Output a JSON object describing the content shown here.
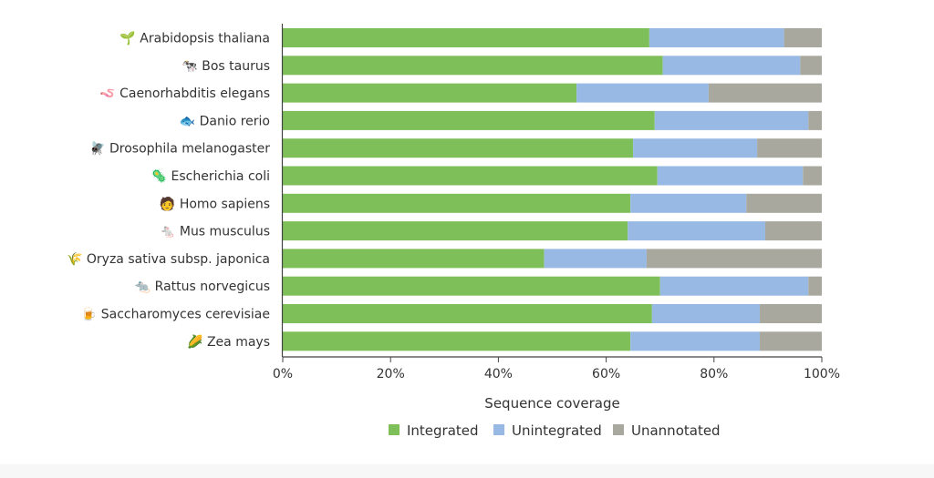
{
  "chart_data": {
    "type": "bar",
    "orientation": "horizontal",
    "stacked": true,
    "categories": [
      "Arabidopsis thaliana",
      "Bos taurus",
      "Caenorhabditis elegans",
      "Danio rerio",
      "Drosophila melanogaster",
      "Escherichia coli",
      "Homo sapiens",
      "Mus musculus",
      "Oryza sativa subsp. japonica",
      "Rattus norvegicus",
      "Saccharomyces cerevisiae",
      "Zea mays"
    ],
    "category_icons": [
      "seedling-icon",
      "cow-icon",
      "worm-icon",
      "fish-icon",
      "fly-icon",
      "microbe-icon",
      "person-icon",
      "mouse-icon",
      "rice-icon",
      "rat-icon",
      "beer-icon",
      "corn-icon"
    ],
    "category_glyphs": [
      "🌱",
      "🐄",
      "🪱",
      "🐟",
      "🪰",
      "🦠",
      "🧑",
      "🐁",
      "🌾",
      "🐀",
      "🍺",
      "🌽"
    ],
    "series": [
      {
        "name": "Integrated",
        "color": "#7fbf5a",
        "values": [
          68,
          70.5,
          54.5,
          69,
          65,
          69.5,
          64.5,
          64,
          48.5,
          70,
          68.5,
          64.5
        ]
      },
      {
        "name": "Unintegrated",
        "color": "#97b9e4",
        "values": [
          25,
          25.5,
          24.5,
          28.5,
          23,
          27,
          21.5,
          25.5,
          19,
          27.5,
          20,
          24
        ]
      },
      {
        "name": "Unannotated",
        "color": "#a8a89e",
        "values": [
          7,
          4,
          21,
          2.5,
          12,
          3.5,
          14,
          10.5,
          32.5,
          2.5,
          11.5,
          11.5
        ]
      }
    ],
    "xlim": [
      0,
      100
    ],
    "xticks": [
      "0%",
      "20%",
      "40%",
      "60%",
      "80%",
      "100%"
    ],
    "xlabel": "Sequence coverage",
    "ylabel": "",
    "grid": false,
    "legend_position": "bottom"
  }
}
